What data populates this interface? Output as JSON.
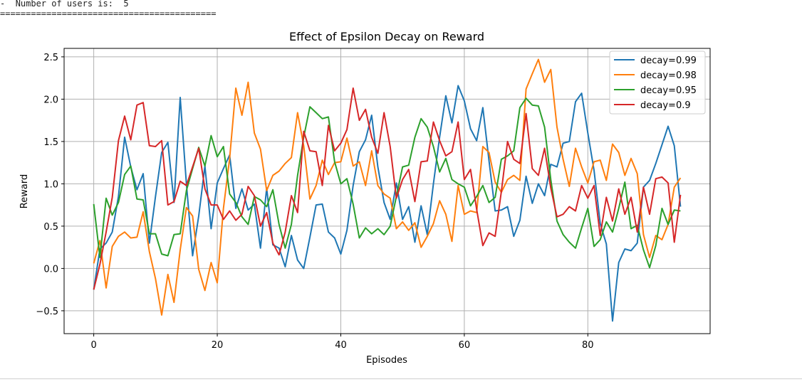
{
  "console": {
    "marker": "-",
    "users_line": "Number of users is:  5",
    "separator": "=========================================="
  },
  "chart_data": {
    "type": "line",
    "title": "Effect of Epsilon Decay on Reward",
    "xlabel": "Episodes",
    "ylabel": "Reward",
    "xlim": [
      -4.8,
      99.8
    ],
    "ylim": [
      -0.77,
      2.6
    ],
    "xticks": [
      0,
      20,
      40,
      60,
      80
    ],
    "yticks": [
      -0.5,
      0.0,
      0.5,
      1.0,
      1.5,
      2.0,
      2.5
    ],
    "ytick_labels": [
      "−0.5",
      "0.0",
      "0.5",
      "1.0",
      "1.5",
      "2.0",
      "2.5"
    ],
    "grid": true,
    "legend_position": "top-right",
    "series": [
      {
        "name": "decay=0.99",
        "color": "#1f77b4",
        "values": [
          -0.25,
          0.23,
          0.3,
          0.43,
          0.85,
          1.55,
          1.2,
          0.93,
          1.12,
          0.3,
          0.85,
          1.37,
          1.49,
          0.78,
          2.02,
          1.0,
          0.15,
          0.62,
          1.21,
          0.47,
          1.01,
          1.18,
          1.34,
          0.71,
          0.94,
          0.69,
          0.76,
          0.24,
          0.95,
          0.28,
          0.24,
          0.02,
          0.39,
          0.1,
          0.0,
          0.37,
          0.75,
          0.76,
          0.43,
          0.36,
          0.17,
          0.45,
          0.98,
          1.38,
          1.52,
          1.81,
          1.2,
          0.78,
          0.58,
          1.01,
          0.58,
          0.73,
          0.31,
          0.74,
          0.4,
          1.0,
          1.55,
          2.04,
          1.72,
          2.16,
          1.98,
          1.65,
          1.51,
          1.9,
          1.27,
          0.68,
          0.69,
          0.73,
          0.38,
          0.57,
          1.09,
          0.77,
          1.0,
          0.86,
          1.23,
          1.2,
          1.48,
          1.5,
          1.97,
          2.07,
          1.6,
          1.16,
          0.53,
          0.29,
          -0.62,
          0.07,
          0.23,
          0.21,
          0.3,
          0.96,
          1.04,
          1.24,
          1.46,
          1.68,
          1.45,
          0.73
        ]
      },
      {
        "name": "decay=0.98",
        "color": "#ff7f0e",
        "values": [
          0.06,
          0.33,
          -0.23,
          0.26,
          0.38,
          0.43,
          0.36,
          0.37,
          0.67,
          0.2,
          -0.12,
          -0.55,
          -0.07,
          -0.4,
          0.22,
          0.72,
          0.62,
          -0.01,
          -0.26,
          0.07,
          -0.17,
          0.71,
          1.3,
          2.13,
          1.81,
          2.2,
          1.6,
          1.41,
          0.92,
          1.1,
          1.15,
          1.24,
          1.31,
          1.84,
          1.45,
          0.82,
          0.98,
          1.28,
          1.11,
          1.25,
          1.26,
          1.54,
          1.21,
          1.26,
          0.98,
          1.39,
          0.98,
          0.88,
          0.83,
          0.47,
          0.55,
          0.45,
          0.54,
          0.25,
          0.38,
          0.53,
          0.8,
          0.64,
          0.32,
          0.98,
          0.64,
          0.68,
          0.66,
          1.44,
          1.37,
          1.02,
          0.9,
          1.05,
          1.1,
          1.04,
          2.12,
          2.3,
          2.47,
          2.2,
          2.35,
          1.67,
          1.29,
          0.97,
          1.42,
          1.2,
          1.01,
          1.26,
          1.28,
          1.04,
          1.47,
          1.37,
          1.1,
          1.3,
          1.12,
          0.4,
          0.13,
          0.39,
          0.34,
          0.52,
          0.96,
          1.07
        ]
      },
      {
        "name": "decay=0.95",
        "color": "#2ca02c",
        "values": [
          0.76,
          0.13,
          0.83,
          0.63,
          0.78,
          1.11,
          1.21,
          0.82,
          0.81,
          0.41,
          0.41,
          0.17,
          0.15,
          0.4,
          0.41,
          0.92,
          1.18,
          1.43,
          1.21,
          1.57,
          1.32,
          1.44,
          0.88,
          0.78,
          0.61,
          0.52,
          0.85,
          0.81,
          0.73,
          0.93,
          0.52,
          0.24,
          0.52,
          1.1,
          1.55,
          1.91,
          1.84,
          1.77,
          1.79,
          1.26,
          1.0,
          1.06,
          0.76,
          0.36,
          0.48,
          0.41,
          0.47,
          0.4,
          0.5,
          0.85,
          1.2,
          1.22,
          1.55,
          1.77,
          1.67,
          1.44,
          1.14,
          1.3,
          1.05,
          1.0,
          0.96,
          0.74,
          0.85,
          0.98,
          0.78,
          0.84,
          1.29,
          1.33,
          1.39,
          1.9,
          2.01,
          1.93,
          1.92,
          1.67,
          1.05,
          0.56,
          0.4,
          0.31,
          0.24,
          0.48,
          0.71,
          0.26,
          0.34,
          0.55,
          0.43,
          0.71,
          1.02,
          0.47,
          0.51,
          0.22,
          0.01,
          0.27,
          0.71,
          0.52,
          0.69,
          0.68
        ]
      },
      {
        "name": "decay=0.9",
        "color": "#d62728",
        "values": [
          -0.25,
          0.05,
          0.43,
          0.84,
          1.51,
          1.8,
          1.52,
          1.93,
          1.96,
          1.45,
          1.44,
          1.51,
          0.75,
          0.79,
          1.03,
          0.98,
          1.2,
          1.42,
          0.94,
          0.75,
          0.75,
          0.58,
          0.68,
          0.57,
          0.64,
          0.97,
          0.86,
          0.5,
          0.66,
          0.3,
          0.16,
          0.43,
          0.86,
          0.66,
          1.62,
          1.39,
          1.38,
          0.98,
          1.69,
          1.39,
          1.48,
          1.64,
          2.13,
          1.75,
          1.88,
          1.55,
          1.36,
          1.84,
          1.44,
          0.83,
          1.05,
          1.17,
          0.79,
          1.26,
          1.27,
          1.73,
          1.51,
          1.33,
          1.38,
          1.73,
          1.05,
          1.17,
          0.7,
          0.27,
          0.42,
          0.38,
          0.91,
          1.5,
          1.29,
          1.24,
          1.83,
          1.18,
          1.1,
          1.42,
          0.95,
          0.61,
          0.64,
          0.73,
          0.68,
          0.98,
          0.83,
          0.98,
          0.39,
          0.84,
          0.56,
          0.94,
          0.64,
          0.84,
          0.43,
          0.96,
          0.64,
          1.06,
          1.08,
          1.01,
          0.31,
          0.87
        ]
      }
    ]
  }
}
